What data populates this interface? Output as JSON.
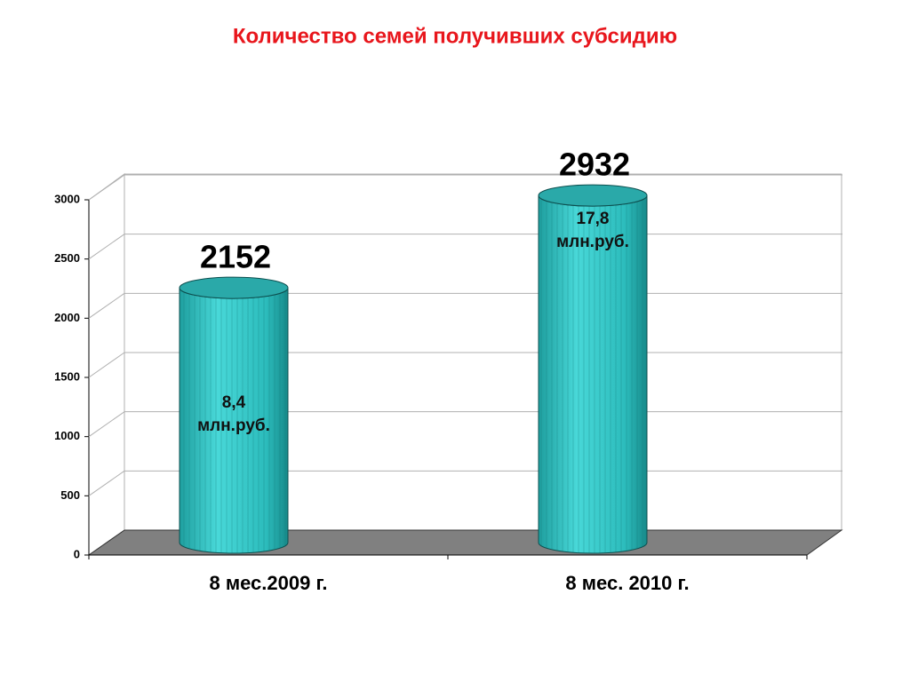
{
  "chart_data": {
    "type": "cylinder-bar",
    "title": "Количество семей получивших субсидию",
    "categories": [
      "8 мес.2009 г.",
      "8 мес. 2010 г."
    ],
    "values": [
      2152,
      2932
    ],
    "annotations": [
      [
        "8,4",
        "млн.руб."
      ],
      [
        "17,8",
        "млн.руб."
      ]
    ],
    "color": "#33c6c6",
    "ylim": [
      0,
      3000
    ],
    "yticks": [
      0,
      500,
      1000,
      1500,
      2000,
      2500,
      3000
    ],
    "grid": true
  }
}
